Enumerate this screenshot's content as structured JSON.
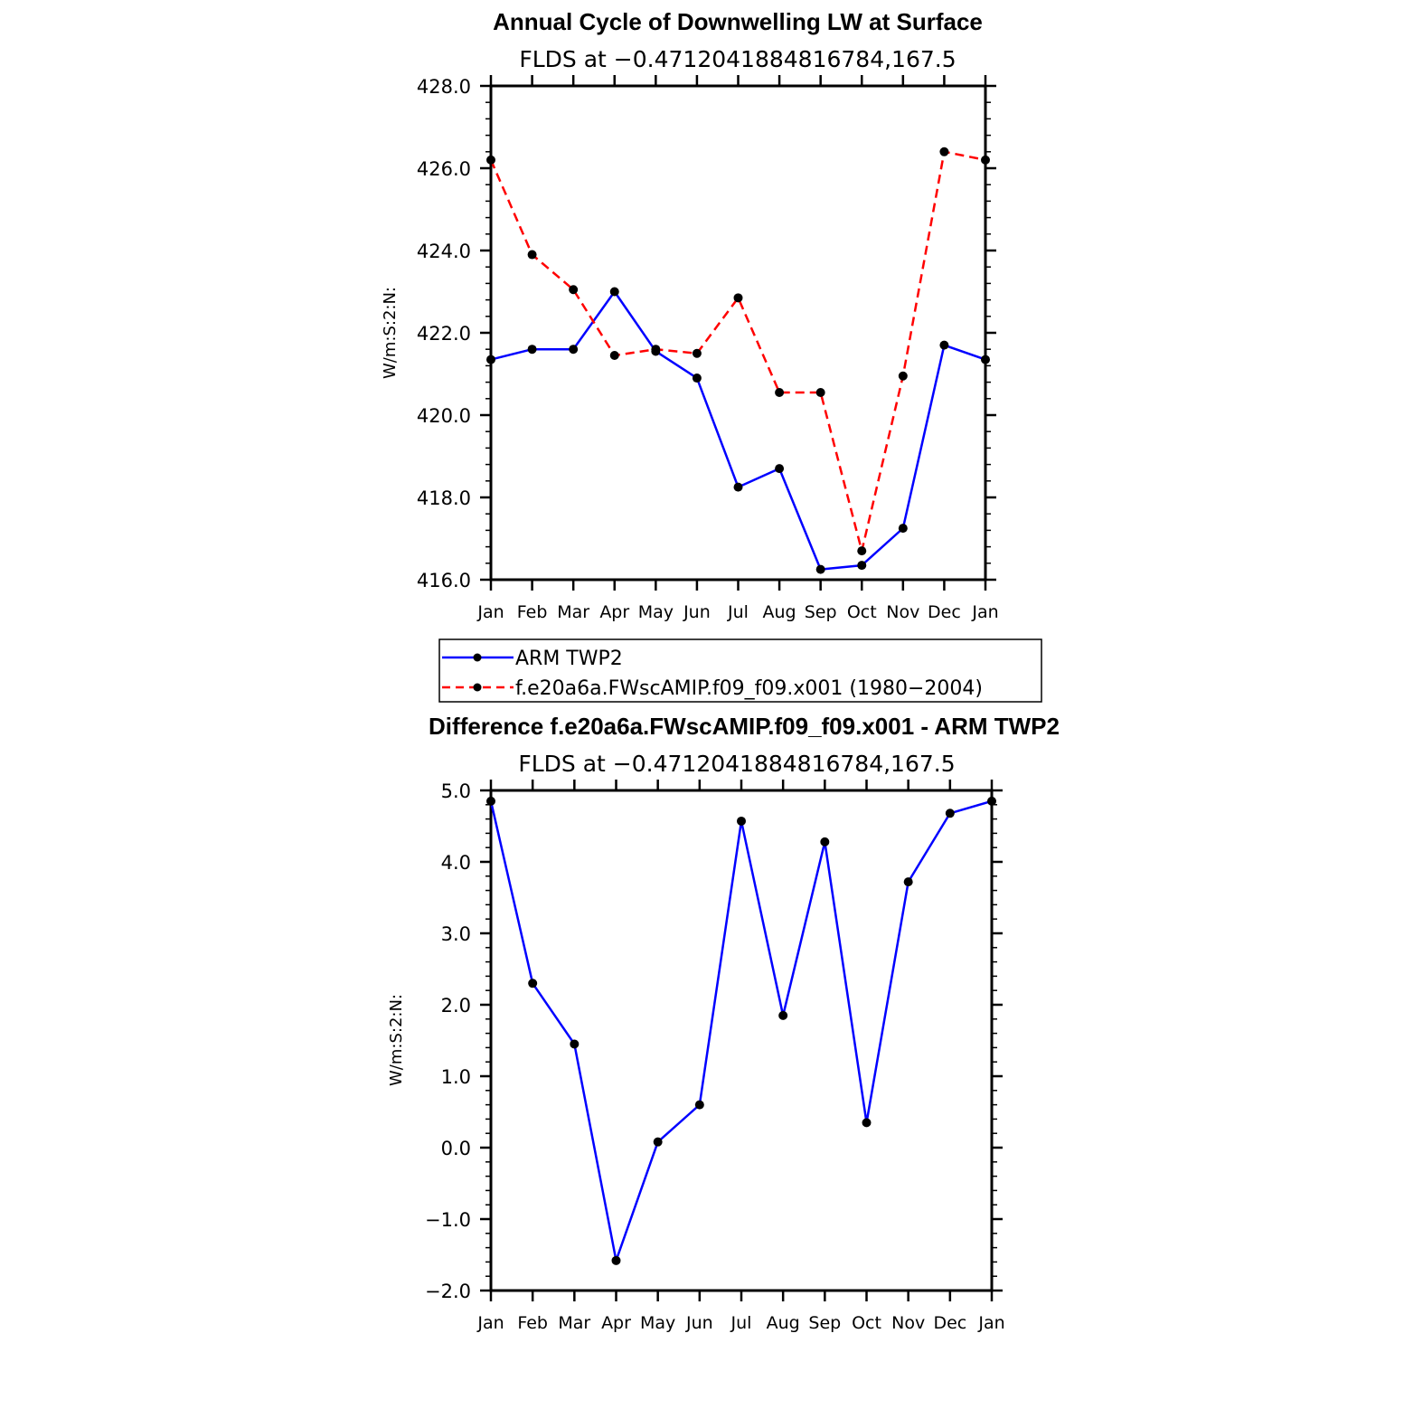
{
  "chart_data": [
    {
      "type": "line",
      "title": "Annual Cycle of Downwelling LW at Surface",
      "subtitle": "FLDS at −0.4712041884816784,167.5",
      "ylabel": "W/m:S:2:N:",
      "xlabel": "",
      "categories": [
        "Jan",
        "Feb",
        "Mar",
        "Apr",
        "May",
        "Jun",
        "Jul",
        "Aug",
        "Sep",
        "Oct",
        "Nov",
        "Dec",
        "Jan"
      ],
      "ylim": [
        416.0,
        428.0
      ],
      "yticks": [
        "416.0",
        "418.0",
        "420.0",
        "422.0",
        "424.0",
        "426.0",
        "428.0"
      ],
      "series": [
        {
          "name": "ARM TWP2",
          "color": "#0000ff",
          "style": "solid",
          "values": [
            421.35,
            421.6,
            421.6,
            423.0,
            421.55,
            420.9,
            418.25,
            418.7,
            416.25,
            416.35,
            417.25,
            421.7,
            421.35
          ]
        },
        {
          "name": "f.e20a6a.FWscAMIP.f09_f09.x001 (1980−2004)",
          "color": "#ff0000",
          "style": "dashed",
          "values": [
            426.2,
            423.9,
            423.05,
            421.45,
            421.6,
            421.5,
            422.85,
            420.55,
            420.55,
            416.7,
            420.95,
            426.4,
            426.2
          ]
        }
      ],
      "legend": "below"
    },
    {
      "type": "line",
      "title": "Difference f.e20a6a.FWscAMIP.f09_f09.x001 - ARM TWP2",
      "subtitle": "FLDS at −0.4712041884816784,167.5",
      "ylabel": "W/m:S:2:N:",
      "xlabel": "",
      "categories": [
        "Jan",
        "Feb",
        "Mar",
        "Apr",
        "May",
        "Jun",
        "Jul",
        "Aug",
        "Sep",
        "Oct",
        "Nov",
        "Dec",
        "Jan"
      ],
      "ylim": [
        -2.0,
        5.0
      ],
      "yticks": [
        "−2.0",
        "−1.0",
        "0.0",
        "1.0",
        "2.0",
        "3.0",
        "4.0",
        "5.0"
      ],
      "series": [
        {
          "color": "#0000ff",
          "style": "solid",
          "values": [
            4.85,
            2.3,
            1.45,
            -1.58,
            0.08,
            0.6,
            4.57,
            1.85,
            4.28,
            0.35,
            3.72,
            4.68,
            4.85
          ]
        }
      ]
    }
  ]
}
